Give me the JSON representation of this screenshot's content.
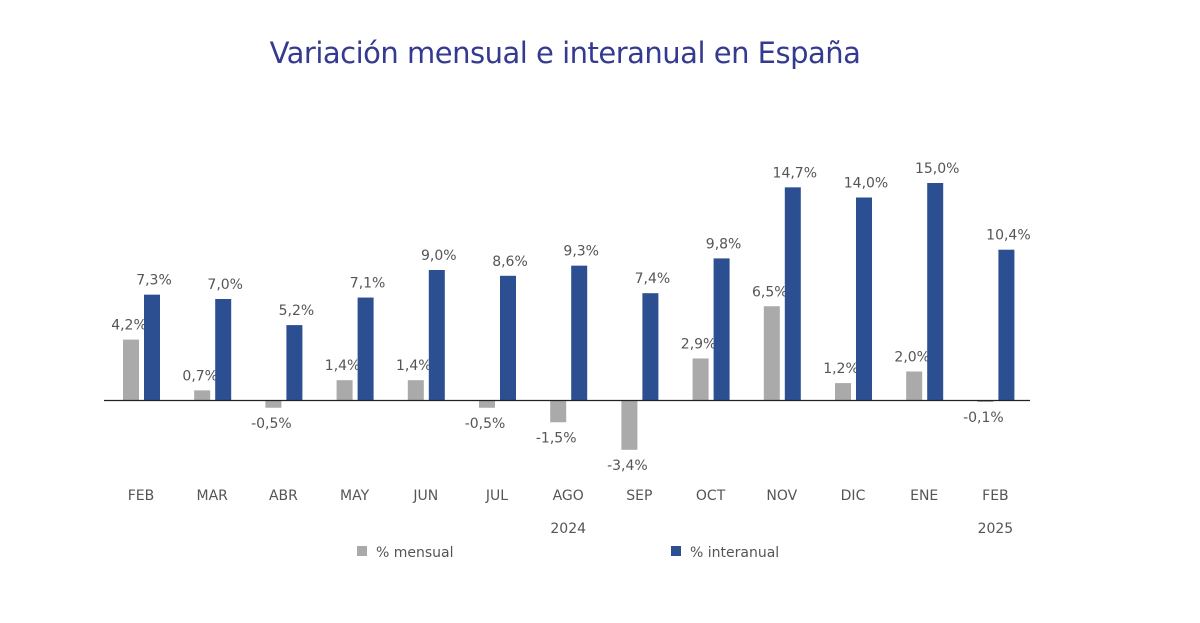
{
  "chart_data": {
    "type": "bar",
    "title": "Variación mensual e interanual en España",
    "categories": [
      "FEB",
      "MAR",
      "ABR",
      "MAY",
      "JUN",
      "JUL",
      "AGO",
      "SEP",
      "OCT",
      "NOV",
      "DIC",
      "ENE",
      "FEB"
    ],
    "year_labels": [
      {
        "label": "2024",
        "under": "AGO"
      },
      {
        "label": "2025",
        "under": "FEB"
      }
    ],
    "series": [
      {
        "name": "% mensual",
        "color": "#aaaaaa",
        "values": [
          4.2,
          0.7,
          -0.5,
          1.4,
          1.4,
          -0.5,
          -1.5,
          -3.4,
          2.9,
          6.5,
          1.2,
          2.0,
          -0.1
        ],
        "data_labels": [
          "4,2%",
          "0,7%",
          "-0,5%",
          "1,4%",
          "1,4%",
          "-0,5%",
          "-1,5%",
          "-3,4%",
          "2,9%",
          "6,5%",
          "1,2%",
          "2,0%",
          "-0,1%"
        ]
      },
      {
        "name": "% interanual",
        "color": "#2b4f91",
        "values": [
          7.3,
          7.0,
          5.2,
          7.1,
          9.0,
          8.6,
          9.3,
          7.4,
          9.8,
          14.7,
          14.0,
          15.0,
          10.4
        ],
        "data_labels": [
          "7,3%",
          "7,0%",
          "5,2%",
          "7,1%",
          "9,0%",
          "8,6%",
          "9,3%",
          "7,4%",
          "9,8%",
          "14,7%",
          "14,0%",
          "15,0%",
          "10,4%"
        ]
      }
    ],
    "legend_position": "bottom",
    "grid": false
  }
}
